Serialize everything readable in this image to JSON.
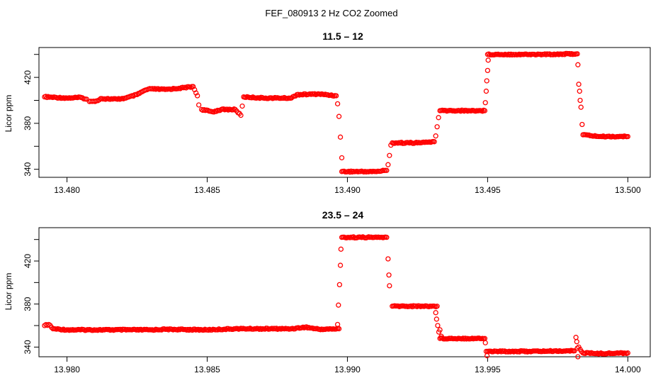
{
  "figure_title": "FEF_080913  2 Hz CO2 Zoomed",
  "chart_data": [
    {
      "type": "scatter",
      "title": "11.5 – 12",
      "xlabel": "",
      "ylabel": "Licor ppm",
      "xlim": [
        13.479,
        13.5008
      ],
      "ylim": [
        333,
        446
      ],
      "x_ticks": [
        13.48,
        13.485,
        13.49,
        13.495,
        13.5
      ],
      "x_tick_labels": [
        "13.480",
        "13.485",
        "13.490",
        "13.495",
        "13.500"
      ],
      "y_ticks": [
        340,
        360,
        380,
        400,
        420,
        440
      ],
      "y_tick_labels": [
        "340",
        "",
        "380",
        "",
        "420",
        ""
      ],
      "marker": "open circle",
      "color": "#ff0000",
      "points": [
        [
          13.4792,
          403
        ],
        [
          13.48,
          402
        ],
        [
          13.4805,
          402.5
        ],
        [
          13.4807,
          401
        ],
        [
          13.4808,
          399
        ],
        [
          13.481,
          399
        ],
        [
          13.4812,
          401.5
        ],
        [
          13.4818,
          401
        ],
        [
          13.4821,
          402
        ],
        [
          13.4825,
          405
        ],
        [
          13.4828,
          409
        ],
        [
          13.483,
          410
        ],
        [
          13.4835,
          409.5
        ],
        [
          13.484,
          410.5
        ],
        [
          13.4845,
          412
        ],
        [
          13.48465,
          404
        ],
        [
          13.4847,
          396
        ],
        [
          13.4848,
          392
        ],
        [
          13.4852,
          390
        ],
        [
          13.4855,
          392
        ],
        [
          13.486,
          392
        ],
        [
          13.4862,
          387
        ],
        [
          13.48625,
          395
        ],
        [
          13.4863,
          403
        ],
        [
          13.487,
          402
        ],
        [
          13.488,
          402
        ],
        [
          13.4882,
          405
        ],
        [
          13.489,
          405.5
        ],
        [
          13.4896,
          404
        ],
        [
          13.48965,
          397
        ],
        [
          13.4897,
          386
        ],
        [
          13.48975,
          368
        ],
        [
          13.4898,
          350
        ],
        [
          13.4898,
          338
        ],
        [
          13.491,
          338
        ],
        [
          13.4914,
          339
        ],
        [
          13.49145,
          344
        ],
        [
          13.4915,
          352
        ],
        [
          13.49155,
          361
        ],
        [
          13.4916,
          363
        ],
        [
          13.4925,
          363
        ],
        [
          13.4931,
          364
        ],
        [
          13.49315,
          369
        ],
        [
          13.4932,
          377
        ],
        [
          13.49325,
          385
        ],
        [
          13.4933,
          391
        ],
        [
          13.494,
          391
        ],
        [
          13.4949,
          391
        ],
        [
          13.49492,
          398
        ],
        [
          13.49495,
          408
        ],
        [
          13.49497,
          417
        ],
        [
          13.495,
          426
        ],
        [
          13.49502,
          435
        ],
        [
          13.495,
          440
        ],
        [
          13.496,
          440
        ],
        [
          13.497,
          440
        ],
        [
          13.4982,
          440.5
        ],
        [
          13.49822,
          431
        ],
        [
          13.49825,
          414
        ],
        [
          13.49828,
          408
        ],
        [
          13.4983,
          400
        ],
        [
          13.49833,
          394
        ],
        [
          13.49837,
          379
        ],
        [
          13.4984,
          370
        ],
        [
          13.499,
          368.5
        ],
        [
          13.5,
          368.5
        ]
      ]
    },
    {
      "type": "scatter",
      "title": "23.5 – 24",
      "xlabel": "",
      "ylabel": "Licor ppm",
      "xlim": [
        13.979,
        14.0008
      ],
      "ylim": [
        331,
        451
      ],
      "x_ticks": [
        13.98,
        13.985,
        13.99,
        13.995,
        14.0
      ],
      "x_tick_labels": [
        "13.980",
        "13.985",
        "13.990",
        "13.995",
        "14.000"
      ],
      "y_ticks": [
        340,
        360,
        380,
        400,
        420,
        440
      ],
      "y_tick_labels": [
        "340",
        "",
        "380",
        "",
        "420",
        ""
      ],
      "marker": "open circle",
      "color": "#ff0000",
      "points": [
        [
          13.9792,
          360
        ],
        [
          13.97935,
          361
        ],
        [
          13.9795,
          357
        ],
        [
          13.98,
          356
        ],
        [
          13.983,
          356
        ],
        [
          13.9835,
          356.5
        ],
        [
          13.985,
          356
        ],
        [
          13.986,
          357
        ],
        [
          13.988,
          357
        ],
        [
          13.9885,
          358.5
        ],
        [
          13.989,
          356.5
        ],
        [
          13.9897,
          357
        ],
        [
          13.98965,
          361
        ],
        [
          13.98968,
          379
        ],
        [
          13.98972,
          398
        ],
        [
          13.98975,
          416
        ],
        [
          13.98977,
          431
        ],
        [
          13.9898,
          442
        ],
        [
          13.9908,
          442
        ],
        [
          13.9914,
          442
        ],
        [
          13.99145,
          422
        ],
        [
          13.99148,
          407
        ],
        [
          13.9915,
          397
        ],
        [
          13.9916,
          378
        ],
        [
          13.9924,
          378
        ],
        [
          13.9932,
          378
        ],
        [
          13.99315,
          372
        ],
        [
          13.99318,
          366
        ],
        [
          13.99322,
          360
        ],
        [
          13.99326,
          354
        ],
        [
          13.9933,
          356
        ],
        [
          13.99335,
          350
        ],
        [
          13.9933,
          348
        ],
        [
          13.994,
          348
        ],
        [
          13.9949,
          348
        ],
        [
          13.99492,
          344
        ],
        [
          13.99495,
          336
        ],
        [
          13.99498,
          332
        ],
        [
          13.995,
          336
        ],
        [
          13.9965,
          336
        ],
        [
          13.9981,
          336.5
        ],
        [
          13.99815,
          349
        ],
        [
          13.99818,
          345
        ],
        [
          13.9982,
          339
        ],
        [
          13.99822,
          331
        ],
        [
          13.99825,
          340
        ],
        [
          13.9984,
          334.5
        ],
        [
          13.999,
          334
        ],
        [
          14.0,
          334.5
        ]
      ]
    }
  ]
}
